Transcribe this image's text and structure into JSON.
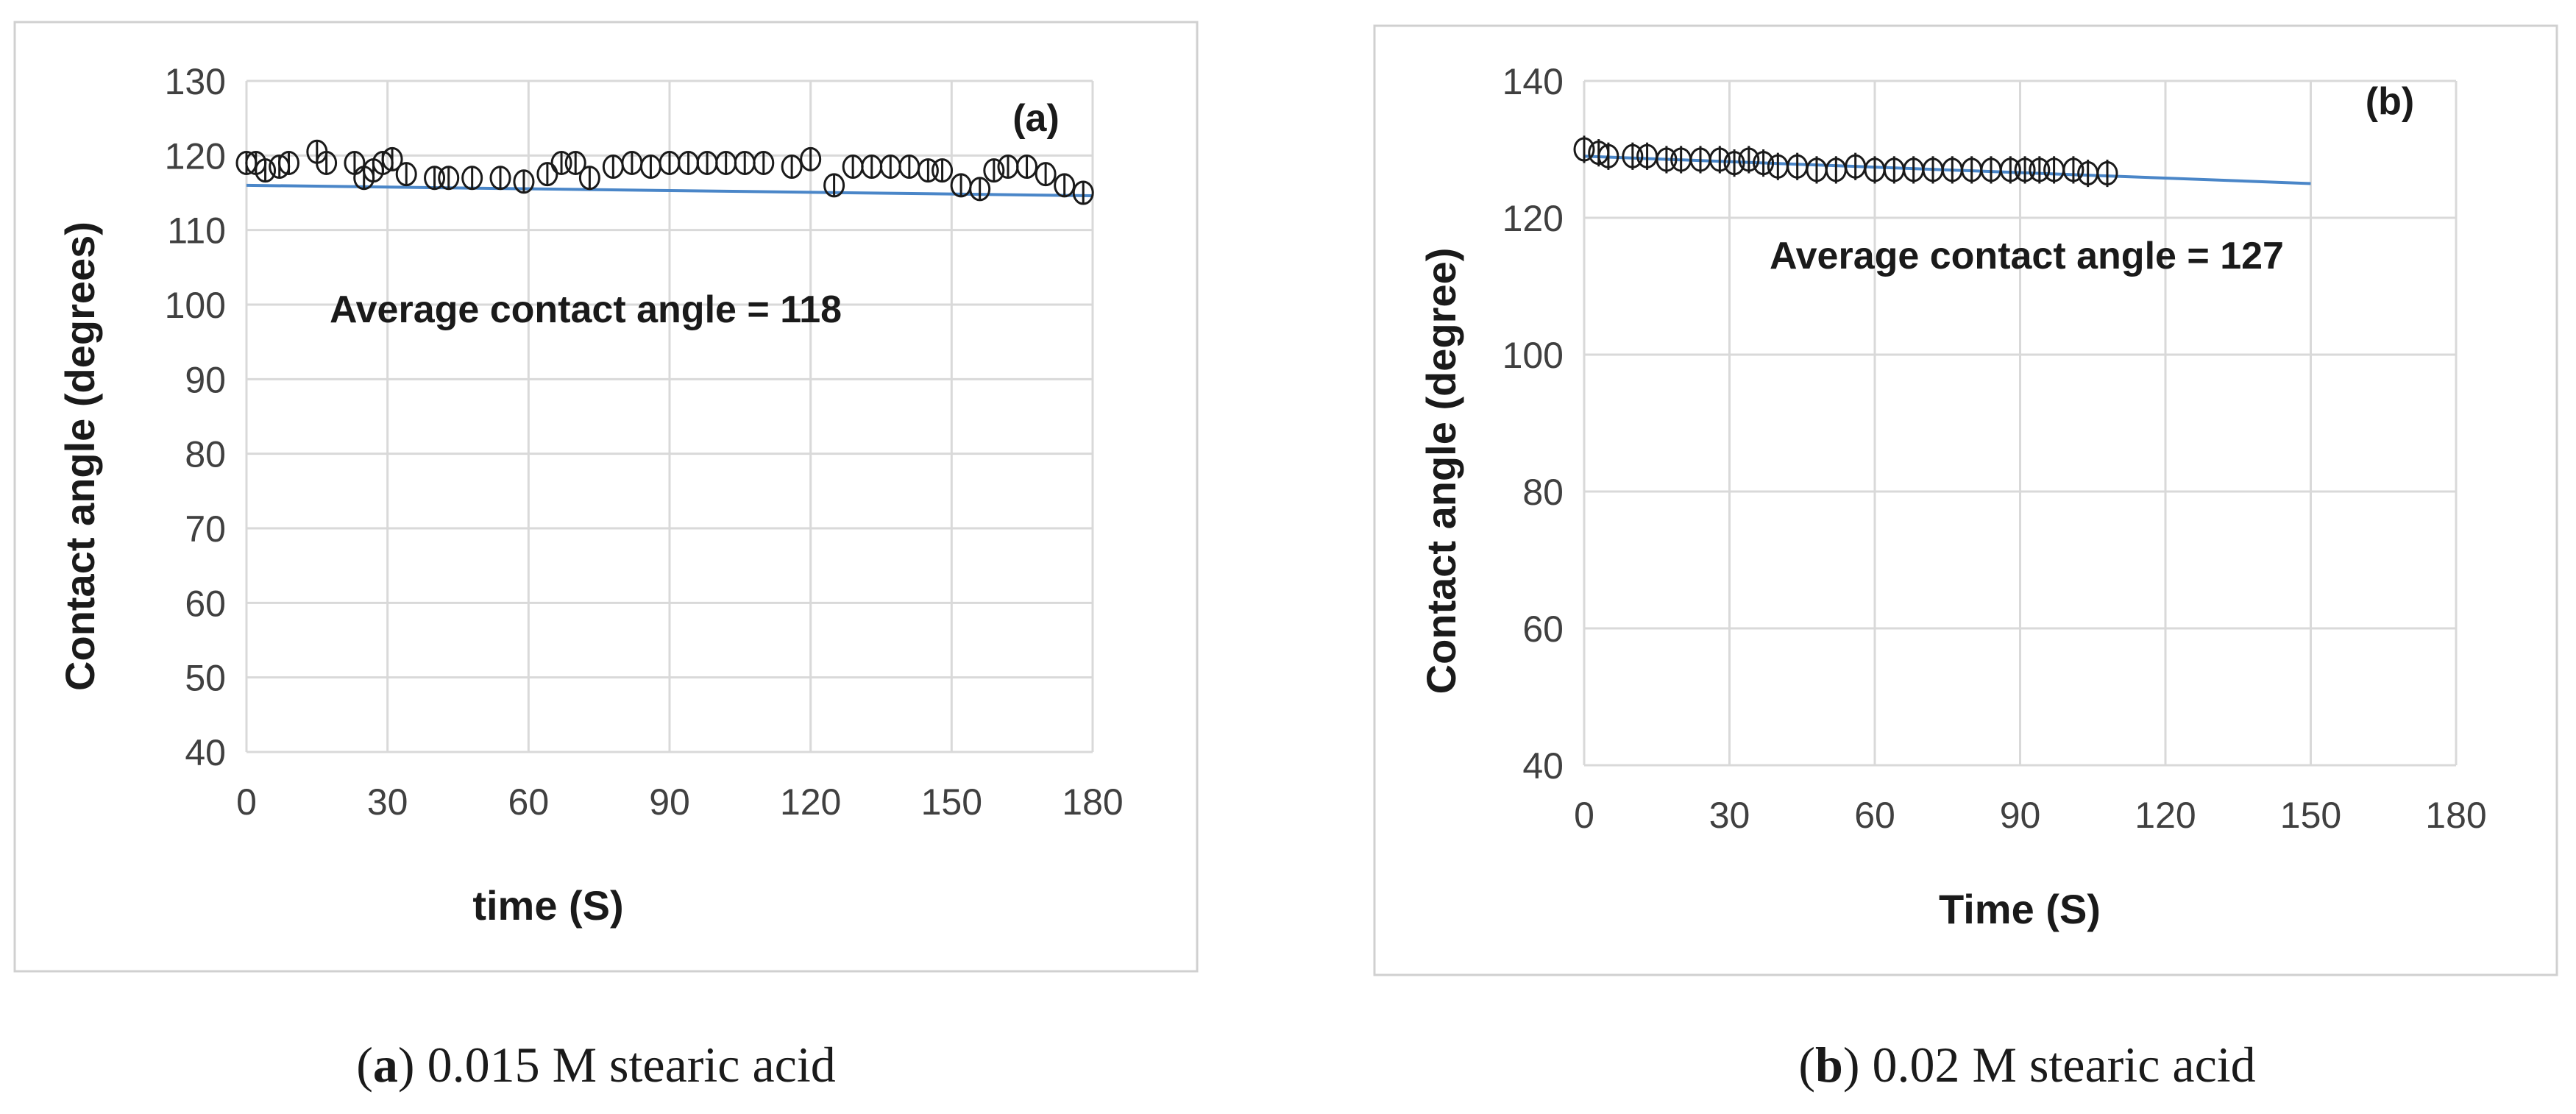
{
  "chart_data": [
    {
      "type": "scatter",
      "panel_label": "(a)",
      "caption_tag": "a",
      "caption_text": "0.015 M stearic acid",
      "xlabel": "time (S)",
      "ylabel": "Contact angle (degrees)",
      "annotation": "Average contact angle = 118",
      "xlim": [
        0,
        180
      ],
      "ylim": [
        40,
        130
      ],
      "xticks": [
        0,
        30,
        60,
        90,
        120,
        150,
        180
      ],
      "yticks": [
        40,
        50,
        60,
        70,
        80,
        90,
        100,
        110,
        120,
        130
      ],
      "grid": true,
      "trendline": {
        "x": [
          0,
          180
        ],
        "y": [
          116,
          114.6
        ]
      },
      "error_bar": 1.5,
      "points": [
        {
          "x": 0,
          "y": 119
        },
        {
          "x": 2,
          "y": 119
        },
        {
          "x": 4,
          "y": 118
        },
        {
          "x": 7,
          "y": 118.5
        },
        {
          "x": 9,
          "y": 119
        },
        {
          "x": 15,
          "y": 120.5
        },
        {
          "x": 17,
          "y": 119
        },
        {
          "x": 23,
          "y": 119
        },
        {
          "x": 25,
          "y": 117
        },
        {
          "x": 27,
          "y": 118
        },
        {
          "x": 29,
          "y": 119
        },
        {
          "x": 31,
          "y": 119.5
        },
        {
          "x": 34,
          "y": 117.5
        },
        {
          "x": 40,
          "y": 117
        },
        {
          "x": 43,
          "y": 117
        },
        {
          "x": 48,
          "y": 117
        },
        {
          "x": 54,
          "y": 117
        },
        {
          "x": 59,
          "y": 116.5
        },
        {
          "x": 64,
          "y": 117.5
        },
        {
          "x": 67,
          "y": 119
        },
        {
          "x": 70,
          "y": 119
        },
        {
          "x": 73,
          "y": 117
        },
        {
          "x": 78,
          "y": 118.5
        },
        {
          "x": 82,
          "y": 119
        },
        {
          "x": 86,
          "y": 118.5
        },
        {
          "x": 90,
          "y": 119
        },
        {
          "x": 94,
          "y": 119
        },
        {
          "x": 98,
          "y": 119
        },
        {
          "x": 102,
          "y": 119
        },
        {
          "x": 106,
          "y": 119
        },
        {
          "x": 110,
          "y": 119
        },
        {
          "x": 116,
          "y": 118.5
        },
        {
          "x": 120,
          "y": 119.5
        },
        {
          "x": 125,
          "y": 116
        },
        {
          "x": 129,
          "y": 118.5
        },
        {
          "x": 133,
          "y": 118.5
        },
        {
          "x": 137,
          "y": 118.5
        },
        {
          "x": 141,
          "y": 118.5
        },
        {
          "x": 145,
          "y": 118
        },
        {
          "x": 148,
          "y": 118
        },
        {
          "x": 152,
          "y": 116
        },
        {
          "x": 156,
          "y": 115.5
        },
        {
          "x": 159,
          "y": 118
        },
        {
          "x": 162,
          "y": 118.5
        },
        {
          "x": 166,
          "y": 118.5
        },
        {
          "x": 170,
          "y": 117.5
        },
        {
          "x": 174,
          "y": 116
        },
        {
          "x": 178,
          "y": 115
        }
      ]
    },
    {
      "type": "scatter",
      "panel_label": "(b)",
      "caption_tag": "b",
      "caption_text": "0.02 M stearic acid",
      "xlabel": "Time (S)",
      "ylabel": "Contact angle  (degree)",
      "annotation": "Average contact angle = 127",
      "xlim": [
        0,
        180
      ],
      "ylim": [
        40,
        140
      ],
      "xticks": [
        0,
        30,
        60,
        90,
        120,
        150,
        180
      ],
      "yticks": [
        40,
        60,
        80,
        100,
        120,
        140
      ],
      "grid": true,
      "trendline": {
        "x": [
          0,
          150
        ],
        "y": [
          129,
          125
        ]
      },
      "error_bar": 2,
      "points": [
        {
          "x": 0,
          "y": 130
        },
        {
          "x": 3,
          "y": 129.5
        },
        {
          "x": 5,
          "y": 129
        },
        {
          "x": 10,
          "y": 129
        },
        {
          "x": 13,
          "y": 129
        },
        {
          "x": 17,
          "y": 128.5
        },
        {
          "x": 20,
          "y": 128.5
        },
        {
          "x": 24,
          "y": 128.5
        },
        {
          "x": 28,
          "y": 128.5
        },
        {
          "x": 31,
          "y": 128
        },
        {
          "x": 34,
          "y": 128.5
        },
        {
          "x": 37,
          "y": 128
        },
        {
          "x": 40,
          "y": 127.5
        },
        {
          "x": 44,
          "y": 127.5
        },
        {
          "x": 48,
          "y": 127
        },
        {
          "x": 52,
          "y": 127
        },
        {
          "x": 56,
          "y": 127.5
        },
        {
          "x": 60,
          "y": 127
        },
        {
          "x": 64,
          "y": 127
        },
        {
          "x": 68,
          "y": 127
        },
        {
          "x": 72,
          "y": 127
        },
        {
          "x": 76,
          "y": 127
        },
        {
          "x": 80,
          "y": 127
        },
        {
          "x": 84,
          "y": 127
        },
        {
          "x": 88,
          "y": 127
        },
        {
          "x": 91,
          "y": 127
        },
        {
          "x": 94,
          "y": 127
        },
        {
          "x": 97,
          "y": 127
        },
        {
          "x": 101,
          "y": 127
        },
        {
          "x": 104,
          "y": 126.5
        },
        {
          "x": 108,
          "y": 126.5
        }
      ]
    }
  ],
  "colors": {
    "trendline": "#4a86c8",
    "marker": "#1a1a1a",
    "grid": "#d9d9d9",
    "frame": "#d0d0d0"
  }
}
